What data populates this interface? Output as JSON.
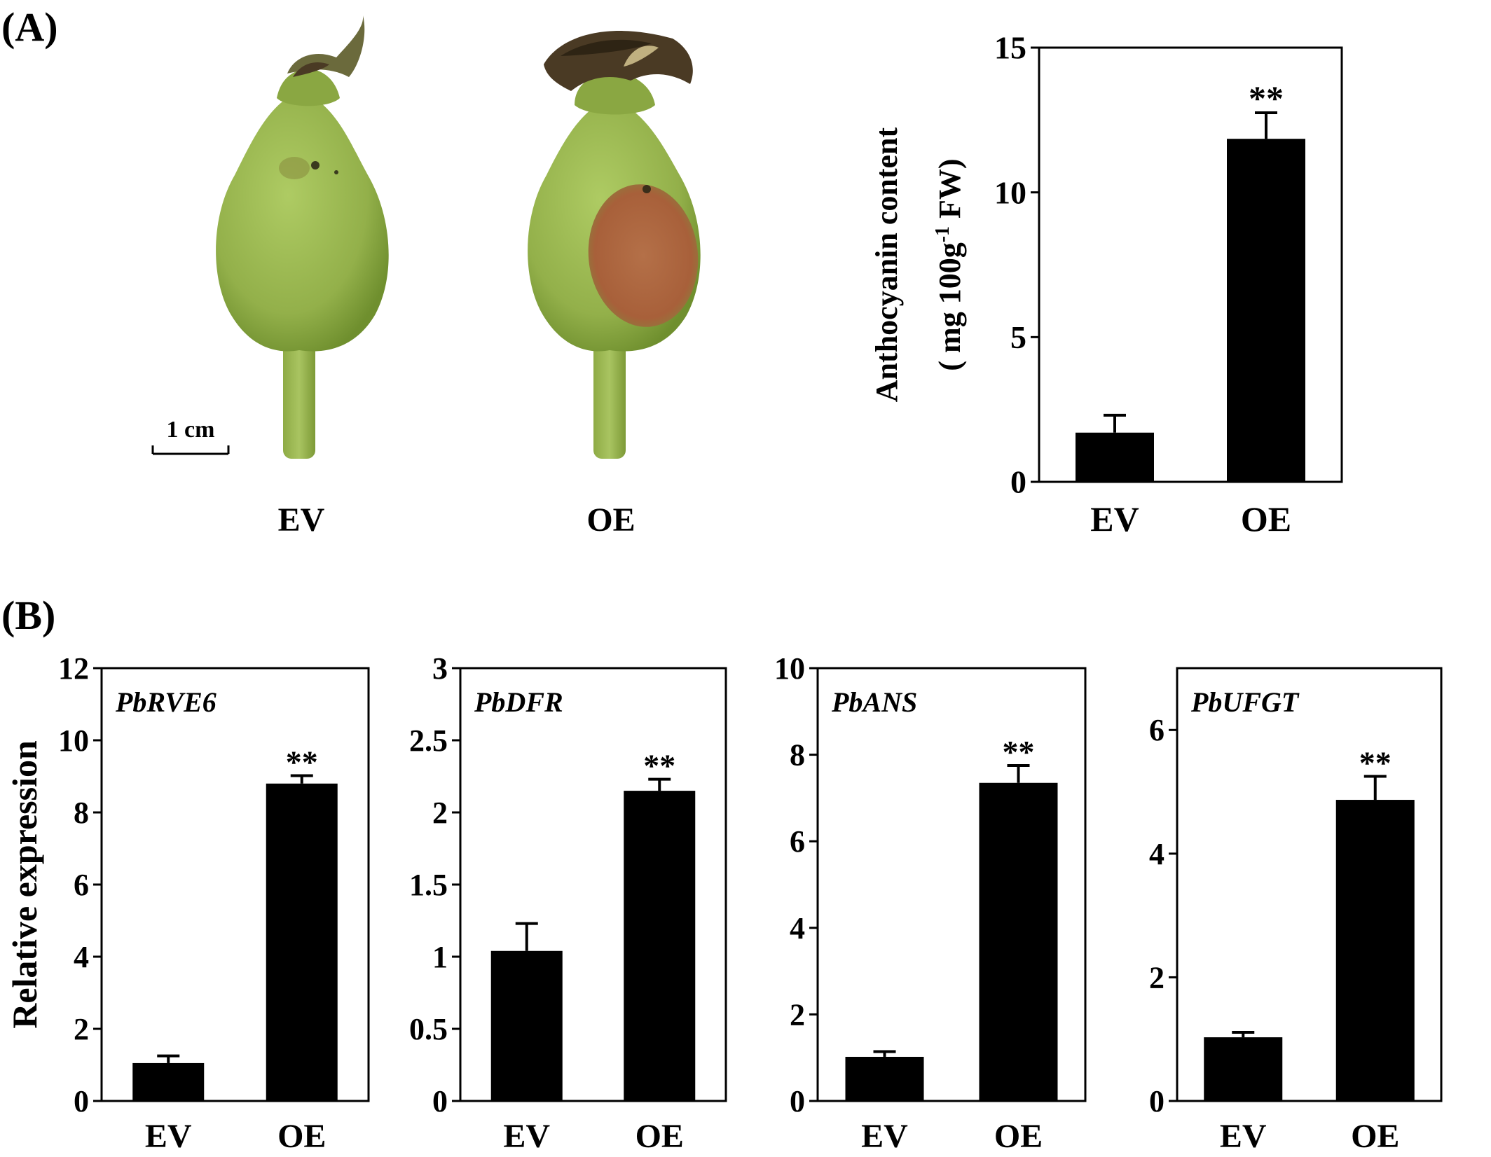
{
  "panel_labels": {
    "a": "(A)",
    "b": "(B)"
  },
  "photo": {
    "scale_bar_label": "1 cm",
    "captions": [
      "EV",
      "OE"
    ],
    "colors": {
      "fruit": "#9bb84f",
      "fruit_dark": "#6f8f2e",
      "spot": "#b0643a",
      "calyx": "#4a3a24"
    }
  },
  "chart_data": [
    {
      "type": "bar",
      "panel": "A",
      "categories": [
        "EV",
        "OE"
      ],
      "values": [
        1.7,
        11.85
      ],
      "errors": [
        0.6,
        0.9
      ],
      "significance": [
        "",
        "**"
      ],
      "ylabel_line1": "Anthocyanin content",
      "ylabel_line2_pre": "( mg 100g",
      "ylabel_line2_sup": "-1",
      "ylabel_line2_post": " FW)",
      "ylim": [
        0,
        15
      ],
      "yticks": [
        0,
        5,
        10,
        15
      ],
      "grid": false,
      "bar_color": "#000000"
    },
    {
      "type": "bar",
      "panel": "B",
      "title": "PbRVE6",
      "categories": [
        "EV",
        "OE"
      ],
      "values": [
        1.05,
        8.8
      ],
      "errors": [
        0.2,
        0.22
      ],
      "significance": [
        "",
        "**"
      ],
      "ylabel": "Relative expression",
      "ylim": [
        0,
        12
      ],
      "yticks": [
        0,
        2,
        4,
        6,
        8,
        10,
        12
      ],
      "ytick_labels": [
        "0",
        "2",
        "4",
        "6",
        "8",
        "10",
        "12"
      ],
      "grid": false,
      "bar_color": "#000000"
    },
    {
      "type": "bar",
      "panel": "B",
      "title": "PbDFR",
      "categories": [
        "EV",
        "OE"
      ],
      "values": [
        1.04,
        2.15
      ],
      "errors": [
        0.19,
        0.08
      ],
      "significance": [
        "",
        "**"
      ],
      "ylim": [
        0,
        3
      ],
      "yticks": [
        0,
        0.5,
        1,
        1.5,
        2,
        2.5,
        3
      ],
      "ytick_labels": [
        "0",
        "0.5",
        "1",
        "1.5",
        "2",
        "2.5",
        "3"
      ],
      "grid": false,
      "bar_color": "#000000"
    },
    {
      "type": "bar",
      "panel": "B",
      "title": "PbANS",
      "categories": [
        "EV",
        "OE"
      ],
      "values": [
        1.02,
        7.35
      ],
      "errors": [
        0.12,
        0.4
      ],
      "significance": [
        "",
        "**"
      ],
      "ylim": [
        0,
        10
      ],
      "yticks": [
        0,
        2,
        4,
        6,
        8,
        10
      ],
      "ytick_labels": [
        "0",
        "2",
        "4",
        "6",
        "8",
        "10"
      ],
      "grid": false,
      "bar_color": "#000000"
    },
    {
      "type": "bar",
      "panel": "B",
      "title": "PbUFGT",
      "categories": [
        "EV",
        "OE"
      ],
      "values": [
        1.03,
        4.87
      ],
      "errors": [
        0.08,
        0.38
      ],
      "significance": [
        "",
        "**"
      ],
      "ylim": [
        0,
        7
      ],
      "yticks": [
        0,
        2,
        4,
        6
      ],
      "ytick_labels": [
        "0",
        "2",
        "4",
        "6"
      ],
      "grid": false,
      "bar_color": "#000000"
    }
  ]
}
